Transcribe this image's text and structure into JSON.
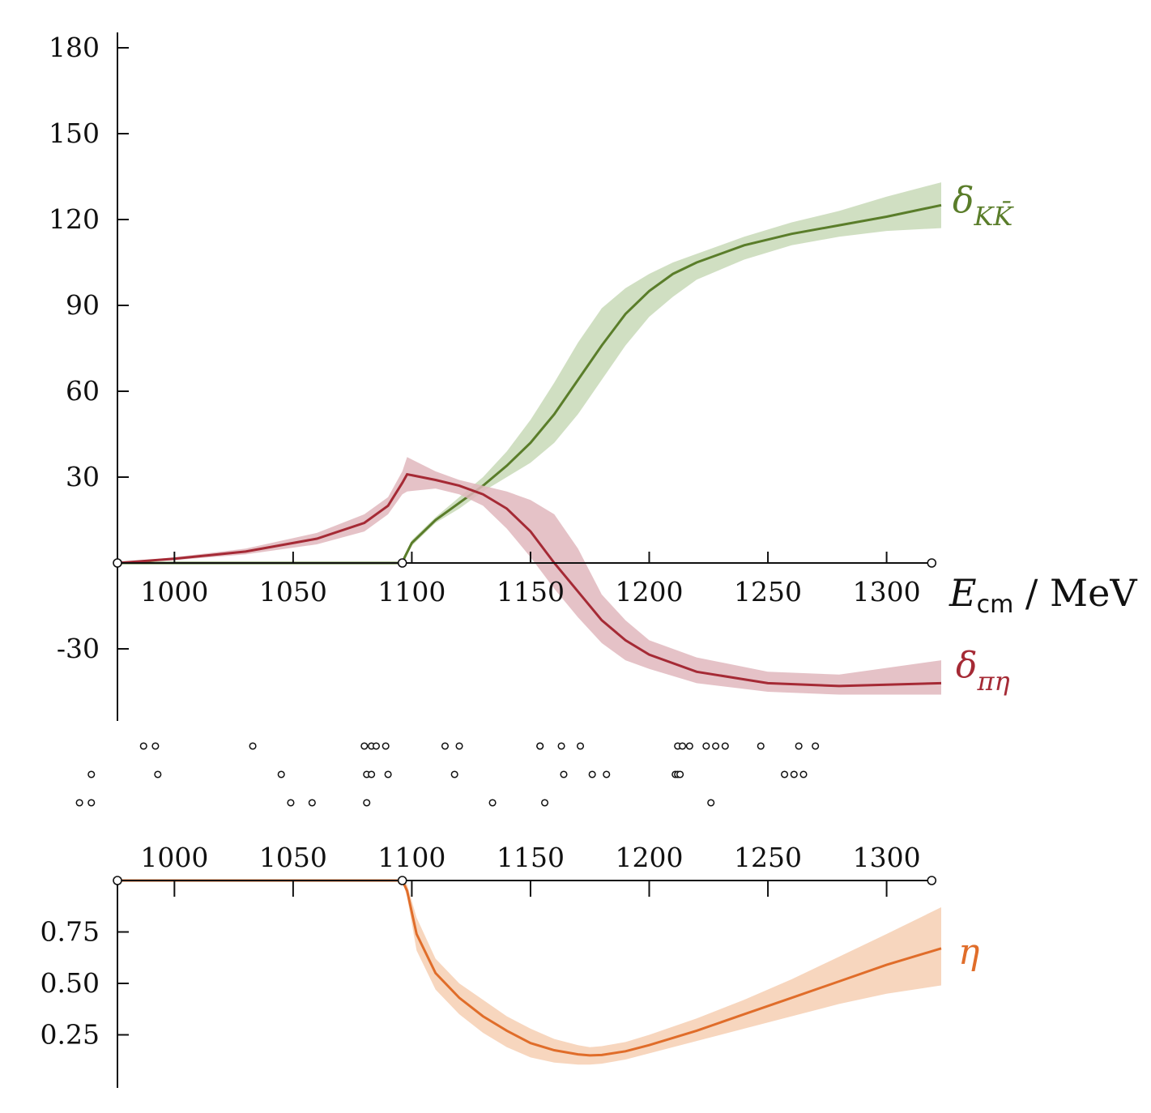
{
  "chart_data": [
    {
      "type": "line",
      "panel": "phase-shifts",
      "xlabel": {
        "base": "E",
        "sub": "cm",
        "rest": " / MeV"
      },
      "xlim": [
        976,
        1323
      ],
      "ylim": [
        -65,
        185
      ],
      "x_ticks": [
        1000,
        1050,
        1100,
        1150,
        1200,
        1250,
        1300
      ],
      "y_ticks": [
        180,
        150,
        120,
        90,
        60,
        30,
        -30
      ],
      "threshold_markers_x": [
        976,
        1096,
        1319
      ],
      "series": [
        {
          "name": "δ_{KK̄}",
          "label": {
            "base": "δ",
            "sub": "KK̄"
          },
          "color": "#5a7d2a",
          "band_color": "#c8d9b7",
          "x": [
            976,
            1096,
            1097,
            1100,
            1110,
            1120,
            1130,
            1140,
            1150,
            1160,
            1170,
            1180,
            1190,
            1200,
            1210,
            1220,
            1240,
            1260,
            1280,
            1300,
            1323
          ],
          "y": [
            0,
            0,
            2,
            7,
            15,
            21,
            27,
            34,
            42,
            52,
            64,
            76,
            87,
            95,
            101,
            105,
            111,
            115,
            118,
            121,
            125
          ],
          "lower": [
            0,
            0,
            1,
            6,
            14,
            19,
            25,
            30,
            35,
            42,
            52,
            64,
            76,
            86,
            93,
            99,
            106,
            111,
            114,
            116,
            117
          ],
          "upper": [
            0,
            0,
            3,
            8,
            16,
            23,
            30,
            39,
            50,
            63,
            77,
            89,
            96,
            101,
            105,
            108,
            114,
            119,
            123,
            128,
            133
          ]
        },
        {
          "name": "δ_{πη}",
          "label": {
            "base": "δ",
            "sub": "πη"
          },
          "color": "#a52a35",
          "band_color": "#e0b7bd",
          "x": [
            976,
            1000,
            1030,
            1060,
            1080,
            1090,
            1096,
            1098,
            1110,
            1120,
            1130,
            1140,
            1150,
            1160,
            1170,
            1180,
            1190,
            1200,
            1220,
            1250,
            1280,
            1323
          ],
          "y": [
            0,
            1.5,
            4,
            8.5,
            14,
            20,
            28,
            31,
            29,
            27,
            24,
            19,
            11,
            0,
            -10,
            -20,
            -27,
            -32,
            -38,
            -42,
            -43,
            -42
          ],
          "lower": [
            0,
            1,
            3,
            6.5,
            11,
            17,
            24,
            25,
            26,
            24,
            20,
            12,
            2,
            -9,
            -19,
            -28,
            -34,
            -37,
            -42,
            -45,
            -46,
            -46
          ],
          "upper": [
            0,
            2,
            5,
            10.5,
            17,
            23,
            32,
            37,
            32,
            29,
            27,
            25,
            22,
            17,
            5,
            -11,
            -20,
            -27,
            -33,
            -38,
            -39,
            -34
          ]
        }
      ]
    },
    {
      "type": "line",
      "panel": "inelasticity",
      "xlim": [
        976,
        1323
      ],
      "ylim": [
        0,
        1
      ],
      "x_ticks": [
        1000,
        1050,
        1100,
        1150,
        1200,
        1250,
        1300
      ],
      "y_ticks": [
        0.75,
        0.5,
        0.25
      ],
      "threshold_markers_x": [
        976,
        1096,
        1319
      ],
      "series": [
        {
          "name": "η",
          "label": {
            "base": "η",
            "sub": ""
          },
          "color": "#e06d2a",
          "band_color": "#f6cfb3",
          "x": [
            976,
            1096,
            1098,
            1102,
            1110,
            1120,
            1130,
            1140,
            1150,
            1160,
            1170,
            1175,
            1180,
            1190,
            1200,
            1220,
            1240,
            1260,
            1280,
            1300,
            1323
          ],
          "y": [
            1,
            1,
            0.95,
            0.74,
            0.55,
            0.43,
            0.34,
            0.27,
            0.21,
            0.175,
            0.155,
            0.15,
            0.152,
            0.17,
            0.2,
            0.27,
            0.35,
            0.43,
            0.51,
            0.59,
            0.67
          ],
          "lower": [
            1,
            1,
            0.92,
            0.66,
            0.47,
            0.35,
            0.26,
            0.19,
            0.14,
            0.115,
            0.105,
            0.105,
            0.11,
            0.13,
            0.16,
            0.22,
            0.28,
            0.34,
            0.4,
            0.45,
            0.49
          ],
          "upper": [
            1,
            1,
            0.98,
            0.82,
            0.62,
            0.5,
            0.42,
            0.34,
            0.28,
            0.23,
            0.2,
            0.19,
            0.195,
            0.215,
            0.25,
            0.33,
            0.42,
            0.52,
            0.63,
            0.74,
            0.87
          ]
        }
      ]
    },
    {
      "type": "scatter",
      "panel": "energy-levels",
      "xlim": [
        976,
        1323
      ],
      "rows": [
        [
          987,
          992,
          1033,
          1080,
          1083,
          1085,
          1089,
          1114,
          1120,
          1154,
          1154,
          1163,
          1171,
          1212,
          1214,
          1217,
          1224,
          1228,
          1232,
          1247,
          1263,
          1270
        ],
        [
          965,
          993,
          1045,
          1081,
          1083,
          1090,
          1118,
          1164,
          1176,
          1182,
          1211,
          1212,
          1213,
          1257,
          1261,
          1265
        ],
        [
          960,
          965,
          1049,
          1058,
          1081,
          1134,
          1156,
          1226
        ]
      ]
    }
  ]
}
